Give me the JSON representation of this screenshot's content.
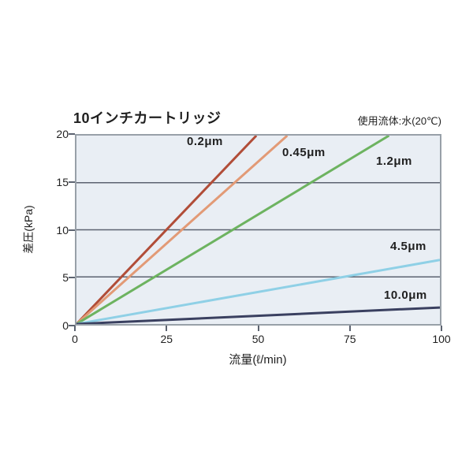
{
  "page": {
    "title": "10インチカートリッジ",
    "note": "使用流体:水(20℃)"
  },
  "chart_data": {
    "type": "line",
    "title": "10インチカートリッジ",
    "annotation": "使用流体:水(20℃)",
    "xlabel": "流量(ℓ/min)",
    "ylabel": "差圧(kPa)",
    "xlim": [
      0,
      100
    ],
    "ylim": [
      0,
      20
    ],
    "x_ticks": [
      0,
      25,
      50,
      75,
      100
    ],
    "y_ticks": [
      0,
      5,
      10,
      15,
      20
    ],
    "grid": true,
    "legend_position": "inline-labels-next-to-lines",
    "colors": {
      "plot_bg": "#e9eef4",
      "grid": "#5c6370",
      "border": "#98a0a8",
      "text": "#1f1f1f"
    },
    "series": [
      {
        "name": "0.2μm",
        "color": "#b14d38",
        "points": [
          [
            0,
            0
          ],
          [
            49.5,
            20
          ]
        ]
      },
      {
        "name": "0.45μm",
        "color": "#e29a76",
        "points": [
          [
            0,
            0
          ],
          [
            58,
            20
          ]
        ]
      },
      {
        "name": "1.2μm",
        "color": "#6db360",
        "points": [
          [
            0,
            0
          ],
          [
            86,
            20
          ]
        ]
      },
      {
        "name": "4.5μm",
        "color": "#8fd0e6",
        "points": [
          [
            0,
            0
          ],
          [
            100,
            6.8
          ]
        ]
      },
      {
        "name": "10.0μm",
        "color": "#3a4060",
        "points": [
          [
            0,
            0
          ],
          [
            100,
            1.75
          ]
        ]
      }
    ]
  }
}
